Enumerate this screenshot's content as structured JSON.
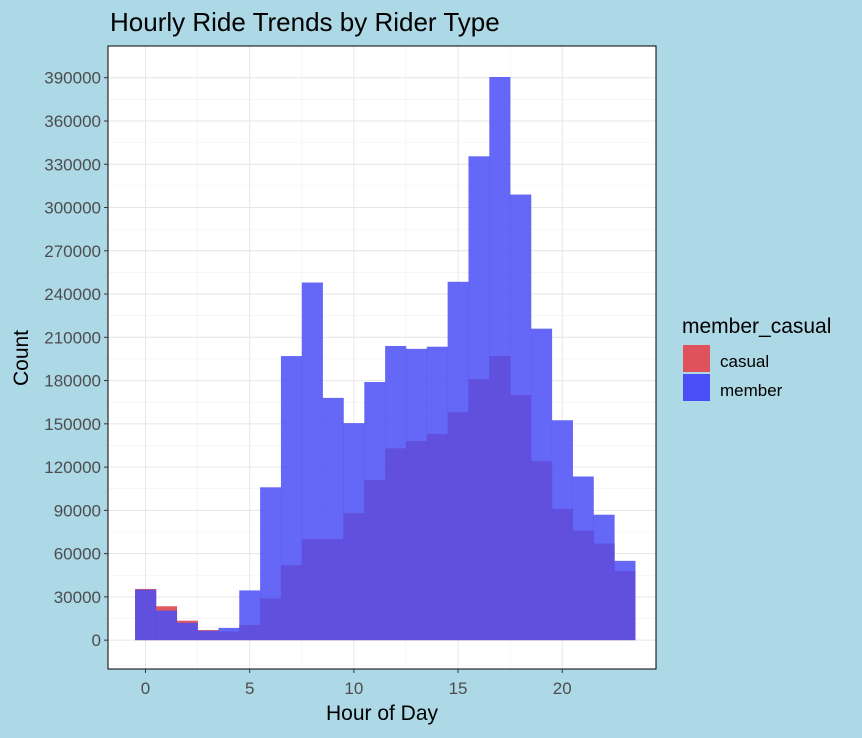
{
  "chart_data": {
    "type": "bar",
    "title": "Hourly Ride Trends by Rider Type",
    "xlabel": "Hour of Day",
    "ylabel": "Count",
    "x": [
      0,
      1,
      2,
      3,
      4,
      5,
      6,
      7,
      8,
      9,
      10,
      11,
      12,
      13,
      14,
      15,
      16,
      17,
      18,
      19,
      20,
      21,
      22,
      23
    ],
    "x_ticks": [
      0,
      5,
      10,
      15,
      20
    ],
    "y_ticks": [
      0,
      30000,
      60000,
      90000,
      120000,
      150000,
      180000,
      210000,
      240000,
      270000,
      300000,
      330000,
      360000,
      390000
    ],
    "xlim": [
      -1.8,
      24.5
    ],
    "ylim": [
      -20000,
      412000
    ],
    "series": [
      {
        "name": "casual",
        "color": "#e0525b",
        "values": [
          35500,
          23500,
          13500,
          7000,
          6000,
          10500,
          29000,
          52000,
          70000,
          70000,
          88000,
          111000,
          133000,
          138000,
          143000,
          158000,
          181000,
          197000,
          170000,
          124000,
          91000,
          76000,
          67000,
          48000
        ]
      },
      {
        "name": "member",
        "color": "#4a4ef5",
        "values": [
          35000,
          20500,
          12000,
          6500,
          8500,
          34500,
          106000,
          197000,
          248000,
          168000,
          150500,
          179000,
          204000,
          202000,
          203500,
          248500,
          335500,
          390500,
          309000,
          216000,
          152500,
          113500,
          87000,
          55000
        ]
      }
    ],
    "legend": {
      "title": "member_casual",
      "position": "right"
    },
    "grid": true
  }
}
